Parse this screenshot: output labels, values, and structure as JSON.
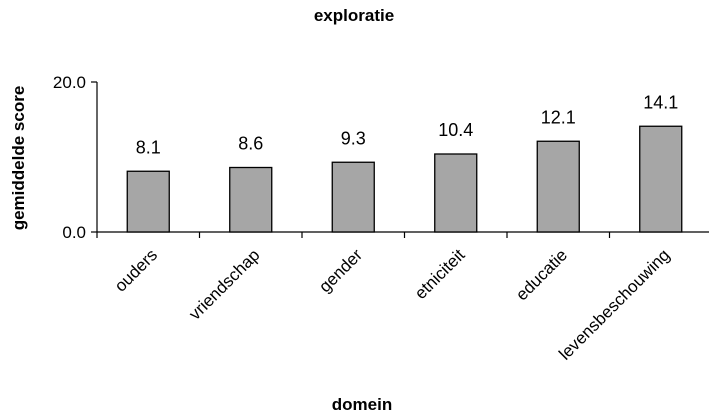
{
  "chart_data": {
    "type": "bar",
    "title": "exploratie",
    "xlabel": "domein",
    "ylabel": "gemiddelde score",
    "categories": [
      "ouders",
      "vriendschap",
      "gender",
      "etniciteit",
      "educatie",
      "levensbeschouwing"
    ],
    "values": [
      8.1,
      8.6,
      9.3,
      10.4,
      12.1,
      14.1
    ],
    "data_labels": [
      "8.1",
      "8.6",
      "9.3",
      "10.4",
      "12.1",
      "14.1"
    ],
    "ylim": [
      0,
      20
    ],
    "yticks": [
      "0.0",
      "20.0"
    ],
    "grid": false,
    "legend": "none",
    "bar_color": "#a6a6a6"
  }
}
